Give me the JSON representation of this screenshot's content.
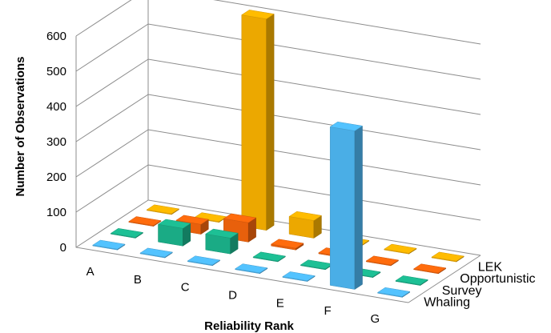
{
  "chart_data": {
    "type": "bar",
    "subtype": "3d-clustered",
    "title": "",
    "xlabel": "Reliability Rank",
    "ylabel": "Number of Observations",
    "ylim": [
      0,
      600
    ],
    "yticks": [
      "0",
      "100",
      "200",
      "300",
      "400",
      "500",
      "600"
    ],
    "grid": true,
    "categories": [
      "A",
      "B",
      "C",
      "D",
      "E",
      "F",
      "G"
    ],
    "series": [
      {
        "name": "Whaling",
        "color": "#4aaee6",
        "values": [
          0,
          2,
          0,
          0,
          0,
          450,
          0
        ]
      },
      {
        "name": "Survey",
        "color": "#1aab85",
        "values": [
          0,
          50,
          45,
          0,
          0,
          0,
          0
        ]
      },
      {
        "name": "Opportunistic",
        "color": "#e8600c",
        "values": [
          0,
          28,
          55,
          5,
          3,
          0,
          0
        ]
      },
      {
        "name": "LEK",
        "color": "#eca800",
        "values": [
          0,
          0,
          600,
          50,
          0,
          0,
          0
        ]
      }
    ]
  }
}
